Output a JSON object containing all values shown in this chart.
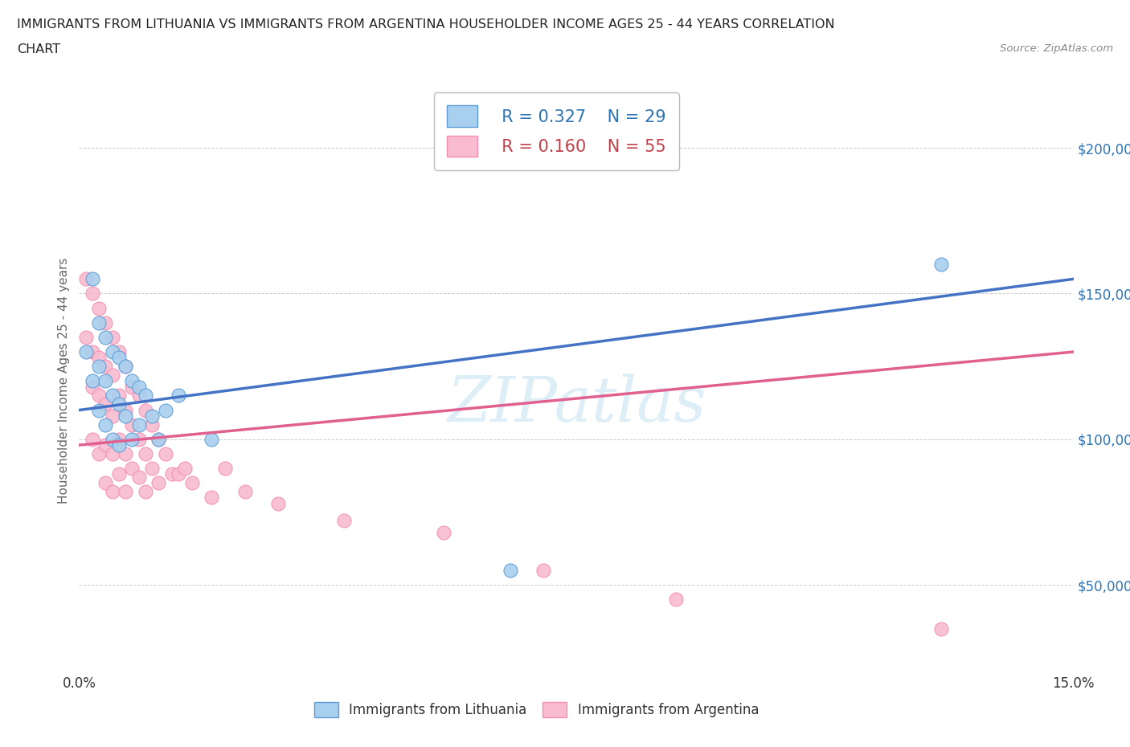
{
  "title_line1": "IMMIGRANTS FROM LITHUANIA VS IMMIGRANTS FROM ARGENTINA HOUSEHOLDER INCOME AGES 25 - 44 YEARS CORRELATION",
  "title_line2": "CHART",
  "source_text": "Source: ZipAtlas.com",
  "ylabel": "Householder Income Ages 25 - 44 years",
  "xlim": [
    0.0,
    0.15
  ],
  "ylim": [
    20000,
    220000
  ],
  "yticks": [
    50000,
    100000,
    150000,
    200000
  ],
  "ytick_labels": [
    "$50,000",
    "$100,000",
    "$150,000",
    "$200,000"
  ],
  "watermark": "ZIPatlas",
  "legend_R1": "R = 0.327",
  "legend_N1": "N = 29",
  "legend_R2": "R = 0.160",
  "legend_N2": "N = 55",
  "color_blue": "#a8d0ee",
  "color_pink": "#f8bbd0",
  "color_blue_edge": "#5b9bd5",
  "color_pink_edge": "#f48fb1",
  "color_blue_line": "#4472c4",
  "color_pink_line": "#e06090",
  "color_blue_dark": "#2e74b5",
  "color_pink_dark": "#c0404a",
  "color_ytick": "#2e74b5",
  "lithuania_x": [
    0.001,
    0.002,
    0.002,
    0.003,
    0.003,
    0.003,
    0.004,
    0.004,
    0.004,
    0.005,
    0.005,
    0.005,
    0.006,
    0.006,
    0.006,
    0.007,
    0.007,
    0.008,
    0.008,
    0.009,
    0.009,
    0.01,
    0.011,
    0.012,
    0.013,
    0.015,
    0.02,
    0.065,
    0.13
  ],
  "lithuania_y": [
    130000,
    155000,
    120000,
    140000,
    125000,
    110000,
    135000,
    120000,
    105000,
    130000,
    115000,
    100000,
    128000,
    112000,
    98000,
    125000,
    108000,
    120000,
    100000,
    118000,
    105000,
    115000,
    108000,
    100000,
    110000,
    115000,
    100000,
    55000,
    160000
  ],
  "argentina_x": [
    0.001,
    0.001,
    0.002,
    0.002,
    0.002,
    0.002,
    0.003,
    0.003,
    0.003,
    0.003,
    0.004,
    0.004,
    0.004,
    0.004,
    0.004,
    0.005,
    0.005,
    0.005,
    0.005,
    0.005,
    0.006,
    0.006,
    0.006,
    0.006,
    0.007,
    0.007,
    0.007,
    0.007,
    0.008,
    0.008,
    0.008,
    0.009,
    0.009,
    0.009,
    0.01,
    0.01,
    0.01,
    0.011,
    0.011,
    0.012,
    0.012,
    0.013,
    0.014,
    0.015,
    0.016,
    0.017,
    0.02,
    0.022,
    0.025,
    0.03,
    0.04,
    0.055,
    0.07,
    0.09,
    0.13
  ],
  "argentina_y": [
    155000,
    135000,
    150000,
    130000,
    118000,
    100000,
    145000,
    128000,
    115000,
    95000,
    140000,
    125000,
    112000,
    98000,
    85000,
    135000,
    122000,
    108000,
    95000,
    82000,
    130000,
    115000,
    100000,
    88000,
    125000,
    110000,
    95000,
    82000,
    118000,
    105000,
    90000,
    115000,
    100000,
    87000,
    110000,
    95000,
    82000,
    105000,
    90000,
    100000,
    85000,
    95000,
    88000,
    88000,
    90000,
    85000,
    80000,
    90000,
    82000,
    78000,
    72000,
    68000,
    55000,
    45000,
    35000
  ]
}
